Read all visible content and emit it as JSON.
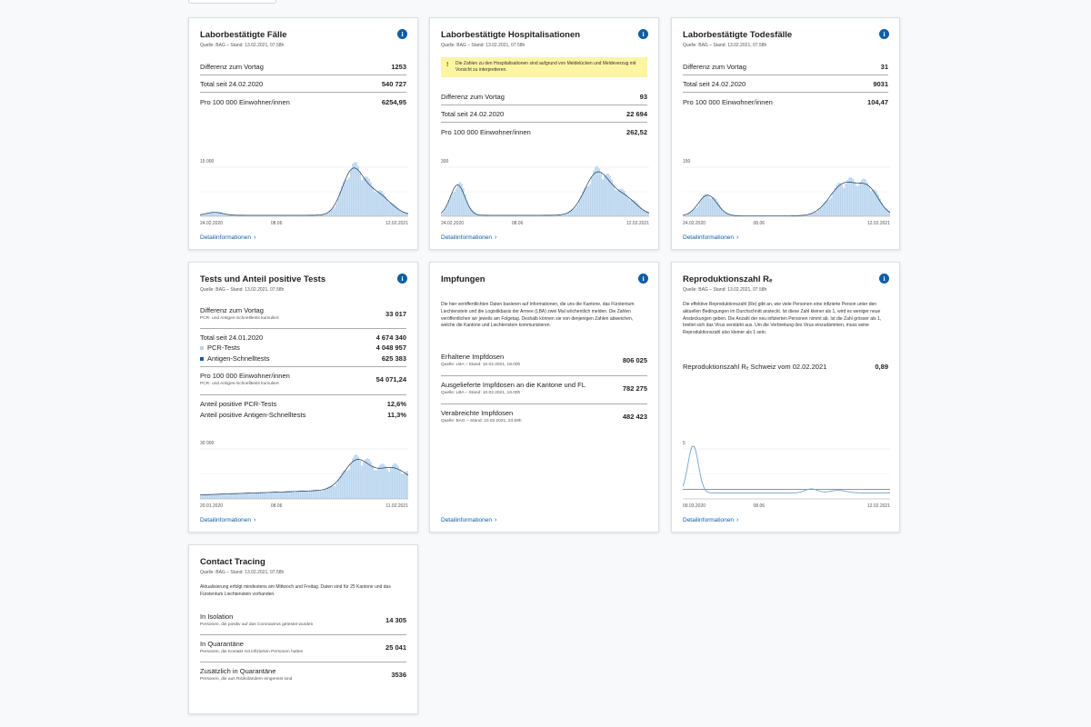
{
  "cards": {
    "cases": {
      "title": "Laborbestätigte Fälle",
      "source": "Quelle: BAG – Stand: 13.02.2021, 07.58h",
      "rows": [
        {
          "label": "Differenz zum Vortag",
          "value": "1253"
        },
        {
          "label": "Total seit 24.02.2020",
          "value": "540 727"
        },
        {
          "label": "Pro 100 000 Einwohner/innen",
          "value": "6254,95"
        }
      ],
      "chart": {
        "ymax_label": "15 000",
        "x_start": "24.02.2020",
        "x_mid": "08.06",
        "x_end": "12.02.2021"
      },
      "detail": "Detailinformationen"
    },
    "hosp": {
      "title": "Laborbestätigte Hospitalisationen",
      "source": "Quelle: BAG – Stand: 13.02.2021, 07.58h",
      "warning": "Die Zahlen zu den Hospitalisationen sind aufgrund von Meldelücken und Meldeverzug mit Vorsicht zu interpretieren.",
      "rows": [
        {
          "label": "Differenz zum Vortag",
          "value": "93"
        },
        {
          "label": "Total seit 24.02.2020",
          "value": "22 694"
        },
        {
          "label": "Pro 100 000 Einwohner/innen",
          "value": "262,52"
        }
      ],
      "chart": {
        "ymax_label": "300",
        "x_start": "24.02.2020",
        "x_mid": "08.06",
        "x_end": "12.02.2021"
      },
      "detail": "Detailinformationen"
    },
    "deaths": {
      "title": "Laborbestätigte Todesfälle",
      "source": "Quelle: BAG – Stand: 13.02.2021, 07.58h",
      "rows": [
        {
          "label": "Differenz zum Vortag",
          "value": "31"
        },
        {
          "label": "Total seit 24.02.2020",
          "value": "9031"
        },
        {
          "label": "Pro 100 000 Einwohner/innen",
          "value": "104,47"
        }
      ],
      "chart": {
        "ymax_label": "150",
        "x_start": "24.02.2020",
        "x_mid": "08.06",
        "x_end": "12.02.2021"
      },
      "detail": "Detailinformationen"
    },
    "tests": {
      "title": "Tests und Anteil positive Tests",
      "source": "Quelle: BAG – Stand: 13.02.2021, 07.58h",
      "diff_label": "Differenz zum Vortag",
      "diff_sub": "PCR- und Antigen-Schnelltests kumuliert",
      "diff_value": "33 017",
      "total_label": "Total seit 24.01.2020",
      "total_value": "4 674 340",
      "pcr_label": "PCR-Tests",
      "pcr_value": "4 048 957",
      "antigen_label": "Antigen-Schnelltests",
      "antigen_value": "625 383",
      "per100k_label": "Pro 100 000 Einwohner/innen",
      "per100k_sub": "PCR- und Antigen-Schnelltests kumuliert",
      "per100k_value": "54 071,24",
      "pos_pcr_label": "Anteil positive PCR-Tests",
      "pos_pcr_value": "12,6%",
      "pos_ag_label": "Anteil positive Antigen-Schnelltests",
      "pos_ag_value": "11,3%",
      "chart": {
        "ymax_label": "30 000",
        "x_start": "20.01.2020",
        "x_mid": "08.06",
        "x_end": "11.02.2021"
      },
      "detail": "Detailinformationen"
    },
    "vacc": {
      "title": "Impfungen",
      "paragraph": "Die hier veröffentlichten Daten basieren auf Informationen, die uns die Kantone, das Fürstentum Liechtenstein und die Logistikbasis der Armee (LBA) zwei Mal wöchentlich melden. Die Zahlen veröffentlichen wir jeweils am Folgetag. Deshalb können sie von denjenigen Zahlen abweichen, welche die Kantone und Liechtenstein kommunizieren.",
      "rows": [
        {
          "label": "Erhaltene Impfdosen",
          "sub": "Quelle: LBA – Stand: 10.02.2021, 18.00h",
          "value": "806 025"
        },
        {
          "label": "Ausgelieferte Impfdosen an die Kantone und FL",
          "sub": "Quelle: LBA – Stand: 10.02.2021, 18.00h",
          "value": "782 275"
        },
        {
          "label": "Verabreichte Impfdosen",
          "sub": "Quelle: BAG – Stand: 10.02.2021, 23.59h",
          "value": "482 423"
        }
      ],
      "detail": "Detailinformationen"
    },
    "reff": {
      "title": "Reproduktionszahl Rₑ",
      "source": "Quelle: BAG – Stand: 13.02.2021, 07.58h",
      "paragraph": "Die effektive Reproduktionszahl (Re) gibt an, wie viele Personen eine infizierte Person unter den aktuellen Bedingungen im Durchschnitt ansteckt. Ist diese Zahl kleiner als 1, wird es weniger neue Ansteckungen geben. Die Anzahl der neu infizierten Personen nimmt ab. Ist die Zahl grösser als 1, breitet sich das Virus verstärkt aus. Um die Verbreitung des Virus einzudämmen, muss seine Reproduktionszahl also kleiner als 1 sein.",
      "row_label": "Reproduktionszahl Rₑ Schweiz vom 02.02.2021",
      "row_value": "0,89",
      "chart": {
        "ymax_label": "5",
        "x_start": "09.03.2020",
        "x_mid": "08.06",
        "x_end": "12.02.2021"
      },
      "detail": "Detailinformationen"
    },
    "contact": {
      "title": "Contact Tracing",
      "source": "Quelle: BAG – Stand: 13.02.2021, 07.58h",
      "paragraph": "Aktualisierung erfolgt mindestens am Mittwoch und Freitag. Daten sind für 25 Kantone und das Fürstentum Liechtenstein vorhanden.",
      "rows": [
        {
          "label": "In Isolation",
          "sub": "Personen, die positiv auf das Coronavirus getestet wurden",
          "value": "14 305"
        },
        {
          "label": "In Quarantäne",
          "sub": "Personen, die Kontakt mit infizierten Personen hatten",
          "value": "25 041"
        },
        {
          "label": "Zusätzlich in Quarantäne",
          "sub": "Personen, die aus Risikoländern eingereist sind",
          "value": "3536"
        }
      ]
    }
  },
  "icons": {
    "info": "info-icon",
    "chevron": "chevron-right-icon",
    "warning": "warning-icon"
  },
  "colors": {
    "accent": "#0e5ea8",
    "bar": "#b8d4ee",
    "line": "#1b3a5c",
    "warning_bg": "#fdf5a3"
  }
}
